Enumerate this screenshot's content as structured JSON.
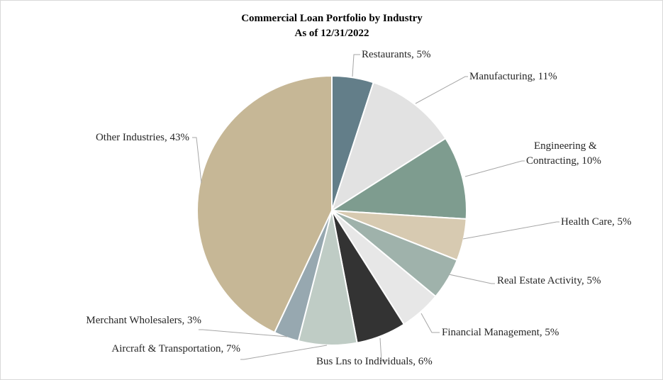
{
  "chart_data": {
    "type": "pie",
    "title": "Commercial Loan Portfolio by Industry",
    "subtitle": "As of 12/31/2022",
    "start_angle_deg": 0,
    "direction": "clockwise",
    "slices": [
      {
        "name": "Restaurants",
        "value": 5,
        "label": "Restaurants, 5%",
        "color": "#637E89"
      },
      {
        "name": "Manufacturing",
        "value": 11,
        "label": "Manufacturing, 11%",
        "color": "#E2E2E2"
      },
      {
        "name": "Engineering & Contracting",
        "value": 10,
        "label_lines": [
          "Engineering &",
          "Contracting, 10%"
        ],
        "color": "#7E9C8F"
      },
      {
        "name": "Health Care",
        "value": 5,
        "label": "Health Care, 5%",
        "color": "#D7CAB1"
      },
      {
        "name": "Real Estate Activity",
        "value": 5,
        "label": "Real Estate Activity, 5%",
        "color": "#9FB2AB"
      },
      {
        "name": "Financial Management",
        "value": 5,
        "label": "Financial Management, 5%",
        "color": "#E7E7E7"
      },
      {
        "name": "Bus Lns to Individuals",
        "value": 6,
        "label": "Bus Lns to Individuals, 6%",
        "color": "#333333"
      },
      {
        "name": "Aircraft & Transportation",
        "value": 7,
        "label": "Aircraft & Transportation, 7%",
        "color": "#BFCCC5"
      },
      {
        "name": "Merchant Wholesalers",
        "value": 3,
        "label": "Merchant Wholesalers, 3%",
        "color": "#97A8B0"
      },
      {
        "name": "Other Industries",
        "value": 43,
        "label": "Other Industries, 43%",
        "color": "#C6B796"
      }
    ]
  }
}
